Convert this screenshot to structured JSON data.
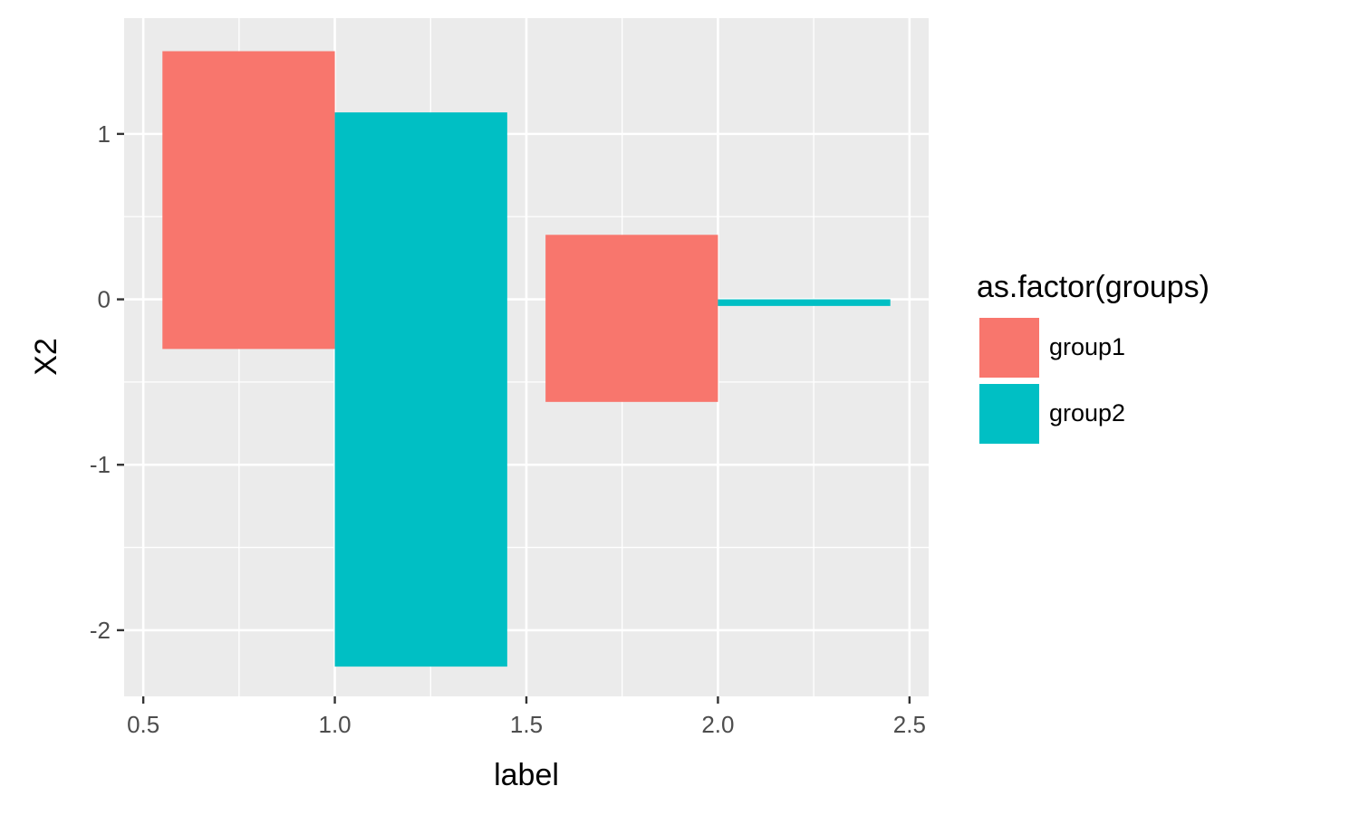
{
  "chart_data": {
    "type": "bar",
    "xlabel": "label",
    "ylabel": "X2",
    "xlim": [
      0.45,
      2.55
    ],
    "ylim": [
      -2.4,
      1.7
    ],
    "xticks": [
      0.5,
      1.0,
      1.5,
      2.0,
      2.5
    ],
    "xtick_labels": [
      "0.5",
      "1.0",
      "1.5",
      "2.0",
      "2.5"
    ],
    "yticks": [
      1,
      0,
      -1,
      -2
    ],
    "ytick_labels": [
      "1",
      "0",
      "-1",
      "-2"
    ],
    "grid": true,
    "legend": {
      "title": "as.factor(groups)",
      "position": "right",
      "entries": [
        {
          "label": "group1",
          "color": "#F8766D"
        },
        {
          "label": "group2",
          "color": "#00BFC4"
        }
      ]
    },
    "bars": [
      {
        "group": "group1",
        "xmin": 0.55,
        "xmax": 1.0,
        "ymin": -0.3,
        "ymax": 1.5
      },
      {
        "group": "group2",
        "xmin": 1.0,
        "xmax": 1.45,
        "ymin": -2.22,
        "ymax": 1.13
      },
      {
        "group": "group1",
        "xmin": 1.55,
        "xmax": 2.0,
        "ymin": -0.62,
        "ymax": 0.39
      },
      {
        "group": "group2",
        "xmin": 2.0,
        "xmax": 2.45,
        "ymin": -0.04,
        "ymax": 0.0
      }
    ],
    "colors": {
      "group1": "#F8766D",
      "group2": "#00BFC4",
      "panel": "#EBEBEB",
      "grid": "#FFFFFF"
    }
  }
}
